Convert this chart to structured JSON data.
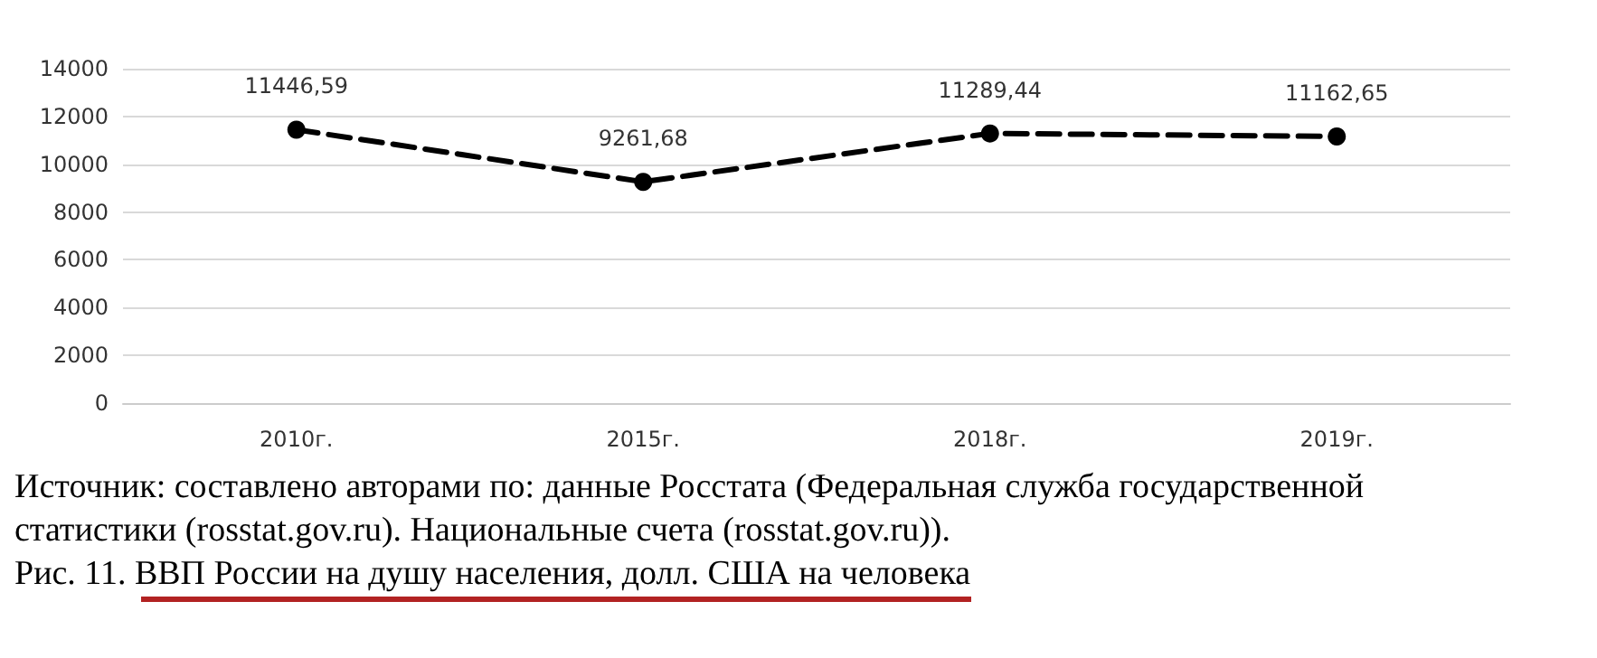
{
  "chart_data": {
    "type": "line",
    "categories": [
      "2010г.",
      "2015г.",
      "2018г.",
      "2019г."
    ],
    "series": [
      {
        "color": "#000000",
        "values": [
          11446.59,
          9261.68,
          11289.44,
          11162.65
        ],
        "value_labels": [
          "11446,59",
          "9261,68",
          "11289,44",
          "11162,65"
        ]
      }
    ],
    "ylim": [
      0,
      14000
    ],
    "yticks": [
      0,
      2000,
      4000,
      6000,
      8000,
      10000,
      12000,
      14000
    ],
    "grid": "y",
    "marker": "circle",
    "line_style": "dashed",
    "annotations": [
      "Источник: составлено авторами по: данные Росстата (Федеральная служба государственной статистики (rosstat.gov.ru). Национальные счета (rosstat.gov.ru)).",
      "Рис. 11. ВВП России на душу населения, долл. США на человека"
    ]
  }
}
